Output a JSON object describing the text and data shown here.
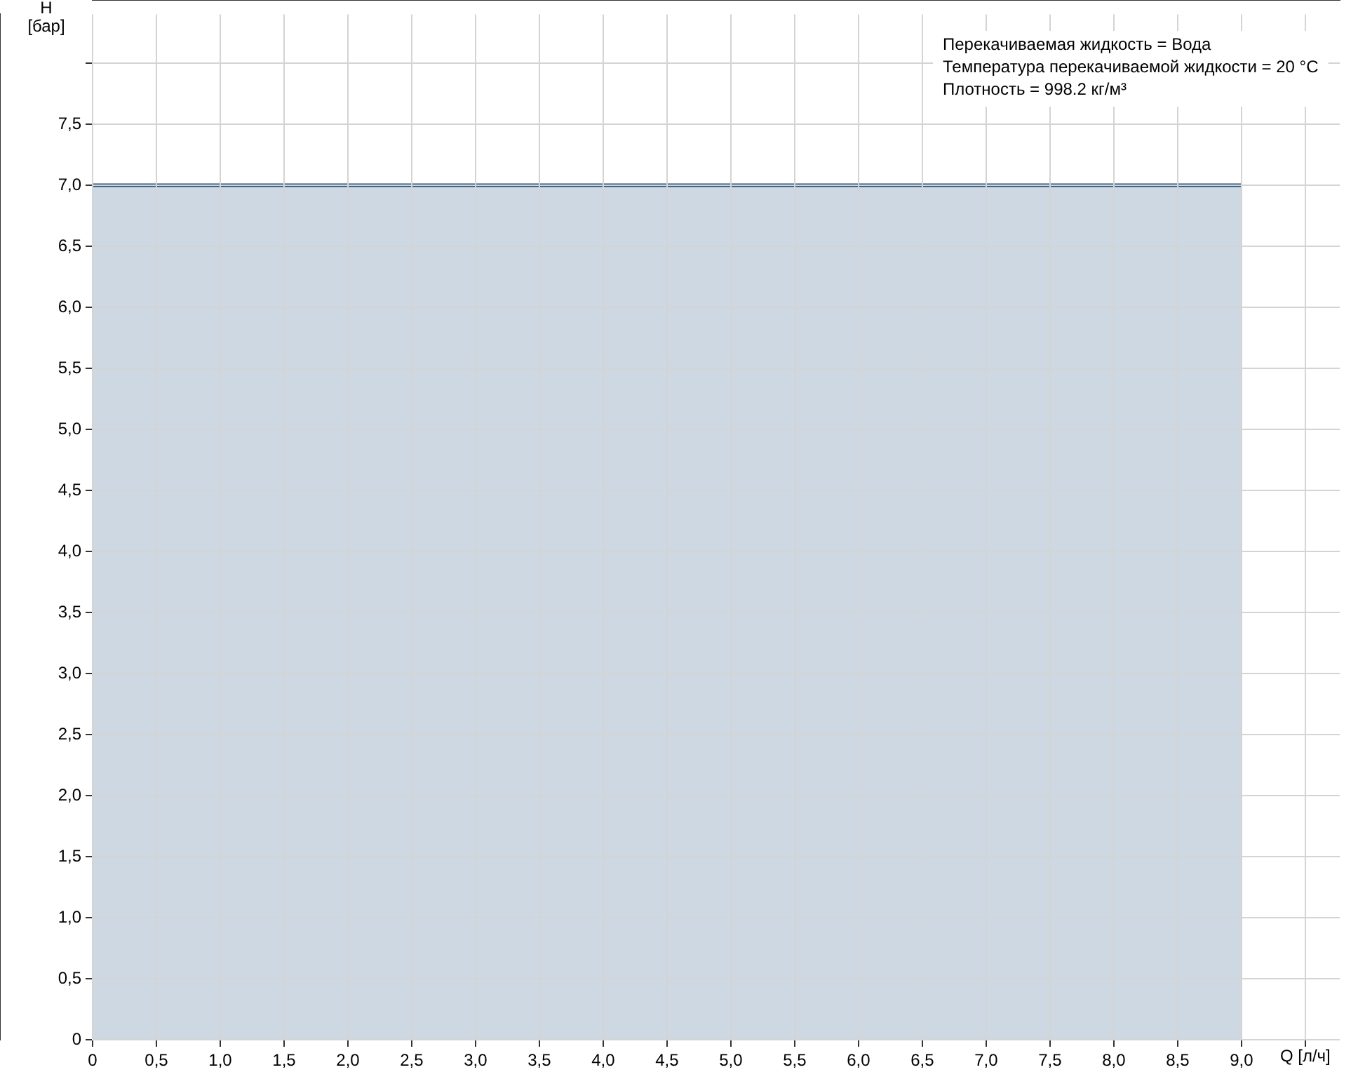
{
  "chart_data": {
    "type": "area",
    "xlabel": "Q [л/ч]",
    "ylabel": "H [бар]",
    "x": [
      0,
      9
    ],
    "series": [
      {
        "color": "#1f4e7a",
        "values": [
          7,
          7
        ]
      }
    ],
    "xlim": [
      0,
      9.77
    ],
    "ylim": [
      0,
      8.4
    ],
    "xticks": [
      0,
      {
        "value": 0.5,
        "label": "0,5"
      },
      {
        "value": 1,
        "label": "1,0"
      },
      {
        "value": 1.5,
        "label": "1,5"
      },
      {
        "value": 2,
        "label": "2,0"
      },
      {
        "value": 2.5,
        "label": "2,5"
      },
      {
        "value": 3,
        "label": "3,0"
      },
      {
        "value": 3.5,
        "label": "3,5"
      },
      {
        "value": 4,
        "label": "4,0"
      },
      {
        "value": 4.5,
        "label": "4,5"
      },
      {
        "value": 5,
        "label": "5,0"
      },
      {
        "value": 5.5,
        "label": "5,5"
      },
      {
        "value": 6,
        "label": "6,0"
      },
      {
        "value": 6.5,
        "label": "6,5"
      },
      {
        "value": 7,
        "label": "7,0"
      },
      {
        "value": 7.5,
        "label": "7,5"
      },
      {
        "value": 8,
        "label": "8,0"
      },
      {
        "value": 8.5,
        "label": "8,5"
      },
      {
        "value": 9,
        "label": "9,0"
      },
      {
        "value": 9.5,
        "label": null
      }
    ],
    "yticks": [
      0,
      {
        "value": 0.5,
        "label": "0,5"
      },
      {
        "value": 1,
        "label": "1,0"
      },
      {
        "value": 1.5,
        "label": "1,5"
      },
      {
        "value": 2,
        "label": "2,0"
      },
      {
        "value": 2.5,
        "label": "2,5"
      },
      {
        "value": 3,
        "label": "3,0"
      },
      {
        "value": 3.5,
        "label": "3,5"
      },
      {
        "value": 4,
        "label": "4,0"
      },
      {
        "value": 4.5,
        "label": "4,5"
      },
      {
        "value": 5,
        "label": "5,0"
      },
      {
        "value": 5.5,
        "label": "5,5"
      },
      {
        "value": 6,
        "label": "6,0"
      },
      {
        "value": 6.5,
        "label": "6,5"
      },
      {
        "value": 7,
        "label": "7,0"
      },
      {
        "value": 7.5,
        "label": "7,5"
      },
      {
        "value": 8,
        "label": null
      }
    ],
    "grid": true,
    "legend": false,
    "annotations": [
      "Перекачиваемая жидкость = Вода",
      "Температура перекачиваемой жидкости = 20 °C",
      "Плотность = 998.2 кг/м³"
    ]
  }
}
